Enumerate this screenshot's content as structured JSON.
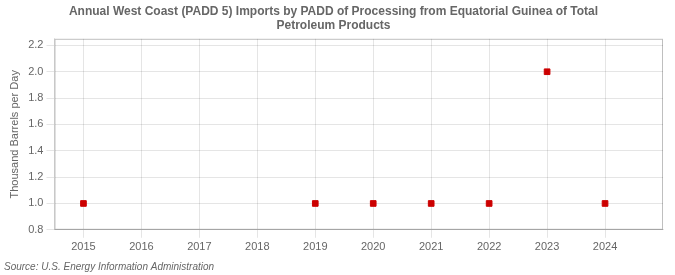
{
  "chart_data": {
    "type": "scatter",
    "title": "Annual West Coast (PADD 5) Imports by PADD of Processing from Equatorial Guinea of Total\nPetroleum Products",
    "ylabel": "Thousand Barrels per Day",
    "source": "Source: U.S. Energy Information Administration",
    "x": [
      2015,
      2019,
      2020,
      2021,
      2022,
      2023,
      2024
    ],
    "values": [
      1.0,
      1.0,
      1.0,
      1.0,
      1.0,
      2.0,
      1.0
    ],
    "color": "#cc0000",
    "marker": "square",
    "xlim": [
      2014.5,
      2025.0
    ],
    "xticks": [
      2015,
      2016,
      2017,
      2018,
      2019,
      2020,
      2021,
      2022,
      2023,
      2024
    ],
    "ylim": [
      0.8,
      2.25
    ],
    "yticks": [
      0.8,
      {
        "value": 1.0,
        "label": "1.0"
      },
      1.2,
      1.4,
      1.6,
      1.8,
      {
        "value": 2.0,
        "label": "2.0"
      },
      2.2
    ],
    "grid": true
  }
}
